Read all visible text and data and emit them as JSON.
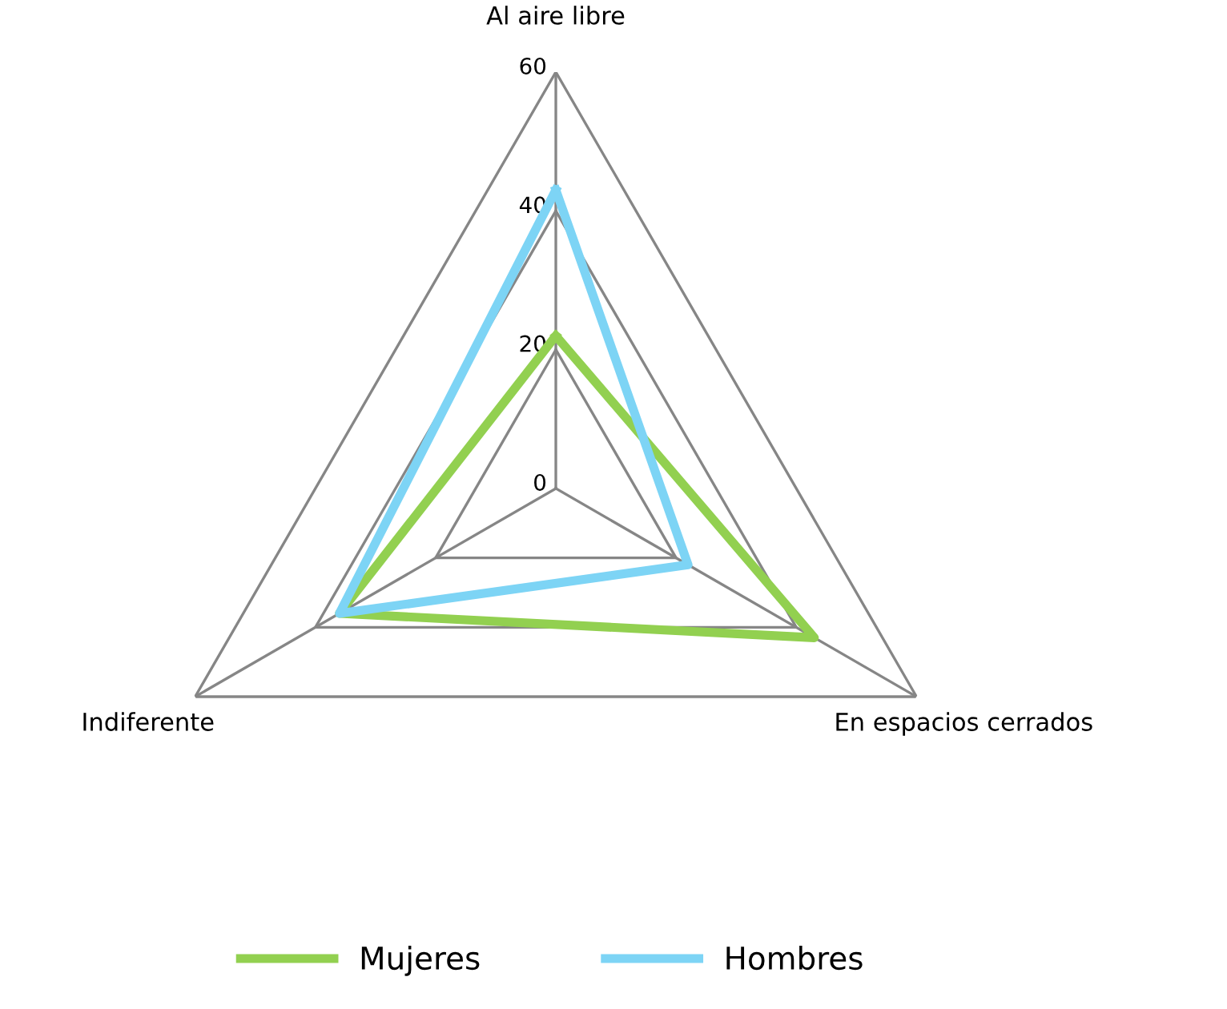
{
  "chart_data": {
    "type": "radar",
    "categories": [
      "Al aire libre",
      "En espacios cerrados",
      "Indiferente"
    ],
    "series": [
      {
        "name": "Mujeres",
        "color": "#92d050",
        "values": [
          22,
          43,
          36
        ]
      },
      {
        "name": "Hombres",
        "color": "#7dd4f5",
        "values": [
          43,
          22,
          36
        ]
      }
    ],
    "ylim": [
      0,
      60
    ],
    "yticks": [
      0,
      20,
      40,
      60
    ],
    "grid": true,
    "legend": "bottom",
    "marker": "none",
    "line_style": "solid"
  }
}
